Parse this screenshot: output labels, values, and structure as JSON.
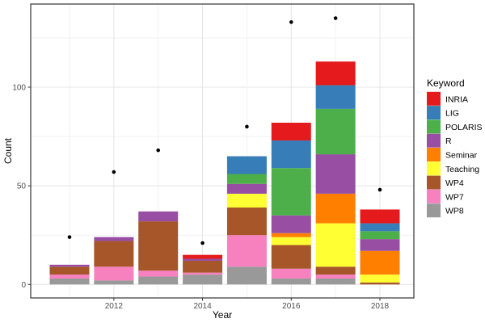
{
  "chart_data": {
    "type": "bar",
    "subtype": "stacked-bars-with-scatter-points",
    "title": "",
    "xlabel": "Year",
    "ylabel": "Count",
    "legend_title": "Keyword",
    "legend_position": "right",
    "grid": true,
    "categories": [
      2011,
      2012,
      2013,
      2014,
      2015,
      2016,
      2017,
      2018
    ],
    "x_tick_labels": [
      "2012",
      "2014",
      "2016",
      "2018"
    ],
    "x_tick_years": [
      2012,
      2014,
      2016,
      2018
    ],
    "y_tick_labels": [
      "0",
      "50",
      "100"
    ],
    "y_ticks": [
      0,
      50,
      100
    ],
    "y_minor_ticks": [
      25,
      75,
      125
    ],
    "ylim": [
      -7,
      142
    ],
    "series": [
      {
        "name": "INRIA",
        "color": "#E41A1C",
        "values": [
          0,
          0,
          0,
          2,
          0,
          9,
          12,
          7
        ]
      },
      {
        "name": "LIG",
        "color": "#377EB8",
        "values": [
          0,
          0,
          0,
          0,
          9,
          14,
          12,
          4
        ]
      },
      {
        "name": "POLARIS",
        "color": "#4DAF4A",
        "values": [
          0,
          0,
          0,
          0,
          5,
          24,
          23,
          4
        ]
      },
      {
        "name": "R",
        "color": "#984EA3",
        "values": [
          1,
          2,
          5,
          1,
          5,
          9,
          20,
          6
        ]
      },
      {
        "name": "Seminar",
        "color": "#FF7F00",
        "values": [
          0,
          0,
          0,
          0,
          0,
          2,
          15,
          12
        ]
      },
      {
        "name": "Teaching",
        "color": "#FFFF33",
        "values": [
          0,
          0,
          0,
          0,
          7,
          4,
          22,
          4
        ]
      },
      {
        "name": "WP4",
        "color": "#A65628",
        "values": [
          4,
          13,
          25,
          6,
          14,
          12,
          4,
          1
        ]
      },
      {
        "name": "WP7",
        "color": "#F781BF",
        "values": [
          2,
          7,
          3,
          1,
          16,
          5,
          2,
          0
        ]
      },
      {
        "name": "WP8",
        "color": "#999999",
        "values": [
          3,
          2,
          4,
          5,
          9,
          3,
          3,
          0
        ]
      }
    ],
    "stack_order_bottom_to_top": [
      "WP8",
      "WP7",
      "WP4",
      "Teaching",
      "Seminar",
      "R",
      "POLARIS",
      "LIG",
      "INRIA"
    ],
    "bar_totals": [
      10,
      24,
      37,
      15,
      65,
      82,
      113,
      38
    ],
    "points": {
      "name": "yearly-dot-totals",
      "color": "#000000",
      "values": [
        24,
        57,
        68,
        21,
        80,
        133,
        135,
        48
      ]
    }
  },
  "theme": {
    "panel_background": "#ffffff",
    "panel_border": "#333333",
    "grid_major": "#e4e4e4",
    "grid_minor": "#f2f2f2",
    "tick_color": "#333333",
    "axis_text_color": "#4d4d4d"
  }
}
